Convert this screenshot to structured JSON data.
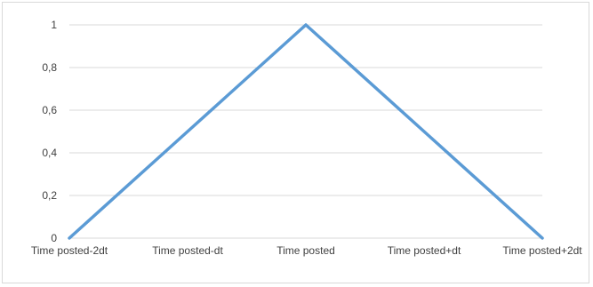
{
  "chart_data": {
    "type": "line",
    "categories": [
      "Time posted-2dt",
      "Time posted-dt",
      "Time posted",
      "Time posted+dt",
      "Time posted+2dt"
    ],
    "series": [
      {
        "values": [
          0,
          0.5,
          1,
          0.5,
          0
        ]
      }
    ],
    "yticks": [
      "0",
      "0,2",
      "0,4",
      "0,6",
      "0,8",
      "1"
    ],
    "ylim": [
      0,
      1
    ],
    "grid": true,
    "legend": "none",
    "title": "",
    "xlabel": "",
    "ylabel": "",
    "colors": {
      "line": "#5b9bd5",
      "grid": "#d9d9d9",
      "text": "#404040"
    }
  }
}
